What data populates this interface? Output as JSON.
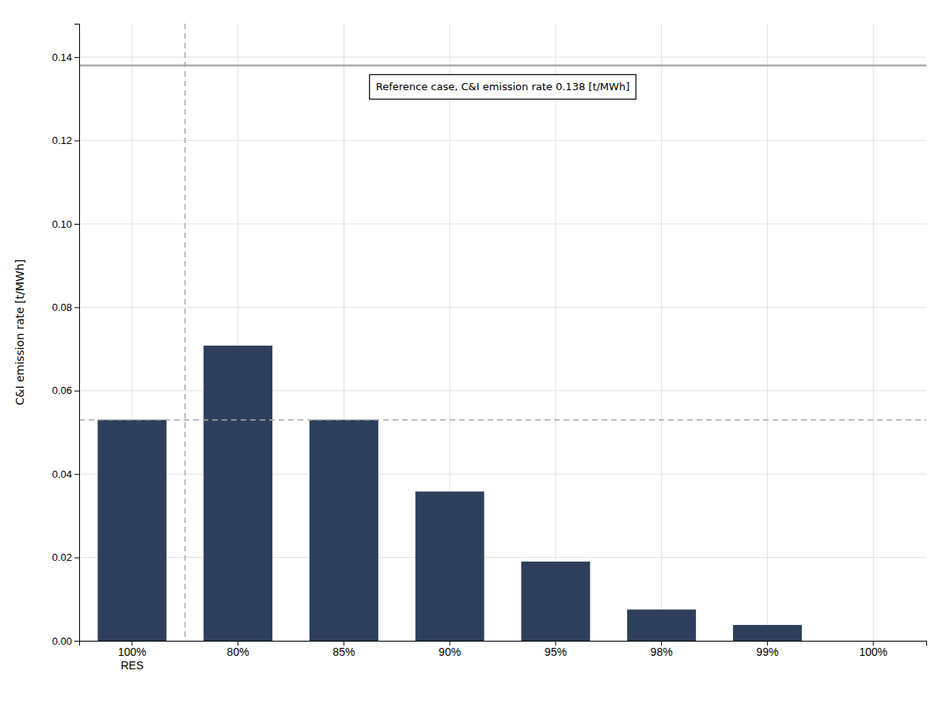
{
  "chart_data": {
    "type": "bar",
    "categories": [
      "100%\nRES",
      "80%",
      "85%",
      "90%",
      "95%",
      "98%",
      "99%",
      "100%"
    ],
    "values": [
      0.053,
      0.0708,
      0.053,
      0.0358,
      0.019,
      0.0075,
      0.0038,
      0.0
    ],
    "color": "#2e3f5c",
    "ylabel": "C&I emission rate [t/MWh]",
    "ylim": [
      0,
      0.148
    ],
    "yticks": [
      {
        "value": 0.0,
        "label": "0.00"
      },
      {
        "value": 0.02,
        "label": "0.02"
      },
      {
        "value": 0.04,
        "label": "0.04"
      },
      {
        "value": 0.06,
        "label": "0.06"
      },
      {
        "value": 0.08,
        "label": "0.08"
      },
      {
        "value": 0.1,
        "label": "0.10"
      },
      {
        "value": 0.12,
        "label": "0.12"
      },
      {
        "value": 0.14,
        "label": "0.14"
      }
    ],
    "grid": true,
    "reference_lines": [
      {
        "value": 0.138,
        "color": "#aaaaaa",
        "line_style": "solid"
      },
      {
        "value": 0.053,
        "color": "#aaaaaa",
        "line_style": "dashed"
      }
    ],
    "separator": {
      "color": "#aaaaaa",
      "line_style": "dashed"
    },
    "annotation": "Reference case, C&I emission rate 0.138 [t/MWh]"
  }
}
